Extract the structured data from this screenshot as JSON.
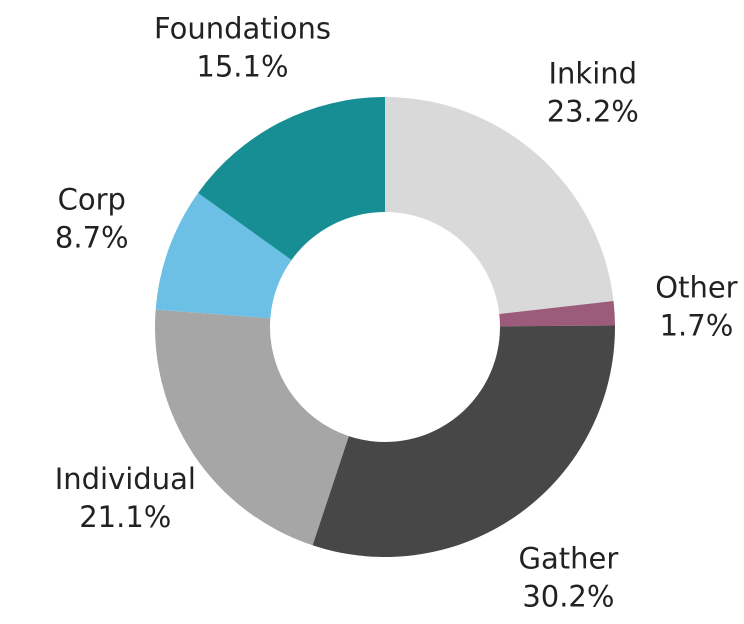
{
  "chart_data": {
    "type": "donut",
    "categories": [
      "Inkind",
      "Other",
      "Gather",
      "Individual",
      "Corp",
      "Foundations"
    ],
    "values": [
      23.2,
      1.7,
      30.2,
      21.1,
      8.7,
      15.1
    ],
    "value_labels": [
      "23.2%",
      "1.7%",
      "30.2%",
      "21.1%",
      "8.7%",
      "15.1%"
    ],
    "colors": [
      "#d9d9d9",
      "#9c5b7a",
      "#474747",
      "#a6a6a6",
      "#6cc0e5",
      "#178e94"
    ]
  }
}
